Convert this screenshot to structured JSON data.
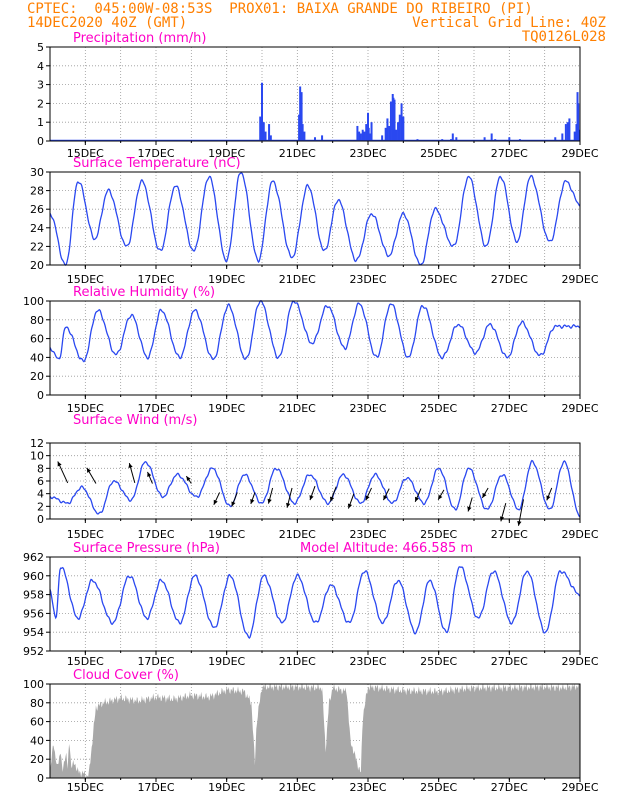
{
  "header": {
    "line1_left": "CPTEC:  045:00W-08:53S  PROX01: BAIXA GRANDE DO RIBEIRO (PI)",
    "line2_left": "14DEC2020 40Z (GMT)",
    "line2_right": "Vertical Grid Line: 40Z",
    "line3_right": "TQ0126L028"
  },
  "colors": {
    "header": "#ff7f00",
    "panel_title": "#ff00c8",
    "line": "#2a48f0",
    "bar": "#2a48f0",
    "cloud": "#a8a8a8",
    "grid": "#999999",
    "text": "#000000"
  },
  "x_tick_labels": [
    "15DEC",
    "17DEC",
    "19DEC",
    "21DEC",
    "23DEC",
    "25DEC",
    "27DEC",
    "29DEC"
  ],
  "chart_data": [
    {
      "type": "bar",
      "title": "Precipitation (mm/h)",
      "ylim": [
        0,
        5
      ],
      "yticks": [
        0,
        1,
        2,
        3,
        4,
        5
      ],
      "x_start_day": 14.0,
      "x_end_day": 29.0,
      "bars": [
        [
          19.95,
          1.3
        ],
        [
          20.0,
          3.1
        ],
        [
          20.05,
          1.0
        ],
        [
          20.1,
          0.5
        ],
        [
          20.2,
          0.9
        ],
        [
          20.25,
          0.3
        ],
        [
          21.05,
          1.4
        ],
        [
          21.08,
          2.9
        ],
        [
          21.12,
          2.6
        ],
        [
          21.15,
          0.9
        ],
        [
          21.2,
          0.5
        ],
        [
          21.5,
          0.2
        ],
        [
          21.7,
          0.3
        ],
        [
          22.7,
          0.8
        ],
        [
          22.75,
          0.5
        ],
        [
          22.8,
          0.4
        ],
        [
          22.85,
          0.6
        ],
        [
          22.9,
          0.5
        ],
        [
          22.95,
          0.9
        ],
        [
          23.0,
          1.5
        ],
        [
          23.02,
          0.7
        ],
        [
          23.05,
          0.4
        ],
        [
          23.1,
          1.0
        ],
        [
          23.4,
          0.3
        ],
        [
          23.5,
          0.7
        ],
        [
          23.55,
          1.2
        ],
        [
          23.6,
          0.8
        ],
        [
          23.65,
          2.1
        ],
        [
          23.7,
          2.5
        ],
        [
          23.72,
          2.3
        ],
        [
          23.75,
          2.2
        ],
        [
          23.8,
          0.6
        ],
        [
          23.85,
          1.0
        ],
        [
          23.9,
          1.4
        ],
        [
          23.95,
          2.0
        ],
        [
          24.0,
          1.3
        ],
        [
          24.4,
          0.1
        ],
        [
          25.1,
          0.1
        ],
        [
          25.35,
          0.1
        ],
        [
          25.4,
          0.4
        ],
        [
          25.5,
          0.2
        ],
        [
          26.3,
          0.2
        ],
        [
          26.5,
          0.4
        ],
        [
          26.6,
          0.1
        ],
        [
          27.0,
          0.2
        ],
        [
          27.3,
          0.1
        ],
        [
          28.3,
          0.2
        ],
        [
          28.5,
          0.4
        ],
        [
          28.6,
          0.9
        ],
        [
          28.65,
          1.0
        ],
        [
          28.7,
          1.2
        ],
        [
          28.85,
          0.5
        ],
        [
          28.9,
          0.9
        ],
        [
          28.93,
          2.6
        ],
        [
          28.95,
          2.0
        ],
        [
          28.98,
          0.6
        ]
      ]
    },
    {
      "type": "line",
      "title": "Surface Temperature (nC)",
      "ylim": [
        20,
        30
      ],
      "yticks": [
        20,
        22,
        24,
        26,
        28,
        30
      ],
      "x_start_day": 14.0,
      "x_end_day": 29.0,
      "peak_times": [
        14.8,
        15.65,
        16.6,
        17.55,
        18.5,
        19.4,
        20.3,
        21.3,
        22.15,
        23.1,
        24.0,
        24.9,
        25.85,
        26.75,
        27.6,
        28.6
      ],
      "maxima": [
        29,
        28,
        29,
        28.5,
        29.5,
        30,
        29,
        28.5,
        27,
        25.5,
        25.5,
        26,
        29.5,
        29.5,
        29.5,
        29
      ],
      "minima": [
        20,
        22.8,
        22,
        21.5,
        21.5,
        20.5,
        20.5,
        20.8,
        21.5,
        20.5,
        21,
        20,
        22,
        22,
        22.5,
        22.5
      ],
      "start_value": 25.5,
      "end_value": 26.5
    },
    {
      "type": "line",
      "title": "Relative Humidity (%)",
      "ylim": [
        0,
        100
      ],
      "yticks": [
        0,
        20,
        40,
        60,
        80,
        100
      ],
      "x_start_day": 14.0,
      "x_end_day": 29.0,
      "peak_times": [
        14.45,
        15.35,
        16.3,
        17.15,
        18.1,
        19.05,
        19.95,
        20.9,
        21.85,
        22.75,
        23.65,
        24.55,
        25.55,
        26.45,
        27.35,
        28.3
      ],
      "maxima": [
        72,
        90,
        85,
        90,
        90,
        95,
        100,
        100,
        95,
        97,
        97,
        95,
        75,
        75,
        77,
        73
      ],
      "minima": [
        38,
        36,
        43,
        40,
        40,
        38,
        38,
        40,
        55,
        50,
        40,
        40,
        40,
        45,
        40,
        42
      ],
      "start_value": 50,
      "end_value": 73
    },
    {
      "type": "line",
      "title": "Surface Wind (m/s)",
      "ylim": [
        0,
        12
      ],
      "yticks": [
        0,
        2,
        4,
        6,
        8,
        10,
        12
      ],
      "x_start_day": 14.0,
      "x_end_day": 29.0,
      "peak_times": [
        14.9,
        15.8,
        16.7,
        17.6,
        18.6,
        19.5,
        20.4,
        21.35,
        22.3,
        23.2,
        24.1,
        25.0,
        25.85,
        26.8,
        27.65,
        28.55
      ],
      "maxima": [
        5,
        6,
        9,
        7,
        8,
        7,
        8,
        7,
        7,
        7,
        6.5,
        8,
        8,
        7,
        9,
        9
      ],
      "minima": [
        2.5,
        0.8,
        3,
        3.5,
        3.5,
        2,
        2.5,
        2.5,
        2.5,
        2.5,
        2.5,
        2.5,
        1.5,
        1.5,
        1.5,
        1.5
      ],
      "start_value": 3.5,
      "end_value": 0.5,
      "vectors": [
        [
          14.5,
          5.7,
          -0.6,
          1.3
        ],
        [
          15.3,
          5.6,
          -0.55,
          0.95
        ],
        [
          16.4,
          5.7,
          -0.33,
          1.2
        ],
        [
          16.9,
          5.6,
          -0.3,
          0.7
        ],
        [
          18.0,
          5.6,
          -0.3,
          0.45
        ],
        [
          18.8,
          4.2,
          -0.35,
          -0.75
        ],
        [
          19.3,
          4.2,
          -0.33,
          -0.85
        ],
        [
          19.8,
          4.2,
          -0.25,
          -0.7
        ],
        [
          20.3,
          4.9,
          -0.25,
          -0.95
        ],
        [
          20.85,
          4.9,
          -0.3,
          -1.2
        ],
        [
          21.5,
          5.2,
          -0.3,
          -0.85
        ],
        [
          22.1,
          5.1,
          -0.35,
          -0.9
        ],
        [
          22.6,
          4.0,
          -0.33,
          -0.9
        ],
        [
          23.1,
          4.9,
          -0.35,
          -0.75
        ],
        [
          23.6,
          4.8,
          -0.35,
          -0.7
        ],
        [
          24.5,
          4.8,
          -0.35,
          -0.8
        ],
        [
          25.15,
          4.6,
          -0.35,
          -0.6
        ],
        [
          25.95,
          3.4,
          -0.25,
          -0.85
        ],
        [
          26.4,
          4.9,
          -0.35,
          -0.6
        ],
        [
          26.9,
          2.5,
          -0.3,
          -1.1
        ],
        [
          27.4,
          3.1,
          -0.3,
          -1.6
        ],
        [
          28.2,
          4.9,
          -0.3,
          -0.75
        ]
      ]
    },
    {
      "type": "line",
      "title": "Surface Pressure (hPa)",
      "title_extra": "Model Altitude: 466.585 m",
      "ylim": [
        952,
        962
      ],
      "yticks": [
        952,
        954,
        956,
        958,
        960,
        962
      ],
      "x_start_day": 14.0,
      "x_end_day": 29.0,
      "peak_times": [
        14.3,
        15.2,
        16.25,
        17.15,
        18.1,
        19.1,
        20.05,
        21.0,
        21.95,
        22.9,
        23.85,
        24.75,
        25.6,
        26.55,
        27.5,
        28.45
      ],
      "maxima": [
        961,
        959.5,
        960,
        959.5,
        960,
        960,
        960,
        960,
        959,
        960.5,
        959.5,
        959.5,
        961,
        960.5,
        960.5,
        960.5
      ],
      "minima": [
        955.5,
        955.5,
        955,
        955.5,
        955,
        954.5,
        953.5,
        955,
        955,
        955,
        955,
        954,
        954,
        955.5,
        955,
        954
      ],
      "start_value": 958.5,
      "end_value": 958
    },
    {
      "type": "area",
      "title": "Cloud Cover (%)",
      "ylim": [
        0,
        100
      ],
      "yticks": [
        0,
        20,
        40,
        60,
        80,
        100
      ],
      "x_start_day": 14.0,
      "x_end_day": 29.0,
      "keypoints": [
        [
          14.0,
          5
        ],
        [
          14.1,
          38
        ],
        [
          14.2,
          10
        ],
        [
          14.3,
          30
        ],
        [
          14.35,
          5
        ],
        [
          14.45,
          28
        ],
        [
          14.5,
          10
        ],
        [
          14.55,
          42
        ],
        [
          14.6,
          12
        ],
        [
          14.7,
          16
        ],
        [
          14.8,
          6
        ],
        [
          14.95,
          5
        ],
        [
          15.05,
          2
        ],
        [
          15.1,
          4
        ],
        [
          15.2,
          40
        ],
        [
          15.3,
          75
        ],
        [
          15.5,
          80
        ],
        [
          16.0,
          85
        ],
        [
          16.5,
          82
        ],
        [
          17.0,
          86
        ],
        [
          17.5,
          84
        ],
        [
          18.0,
          88
        ],
        [
          18.5,
          86
        ],
        [
          19.0,
          94
        ],
        [
          19.5,
          92
        ],
        [
          19.7,
          80
        ],
        [
          19.8,
          15
        ],
        [
          19.85,
          60
        ],
        [
          20.0,
          97
        ],
        [
          21.0,
          97
        ],
        [
          21.7,
          96
        ],
        [
          21.8,
          30
        ],
        [
          21.9,
          80
        ],
        [
          22.0,
          96
        ],
        [
          22.4,
          92
        ],
        [
          22.5,
          40
        ],
        [
          22.7,
          15
        ],
        [
          22.8,
          5
        ],
        [
          22.85,
          65
        ],
        [
          23.0,
          97
        ],
        [
          23.5,
          95
        ],
        [
          24.0,
          93
        ],
        [
          25.0,
          92
        ],
        [
          26.0,
          96
        ],
        [
          27.0,
          96
        ],
        [
          28.0,
          97
        ],
        [
          28.5,
          96
        ],
        [
          29.0,
          98
        ]
      ]
    }
  ]
}
